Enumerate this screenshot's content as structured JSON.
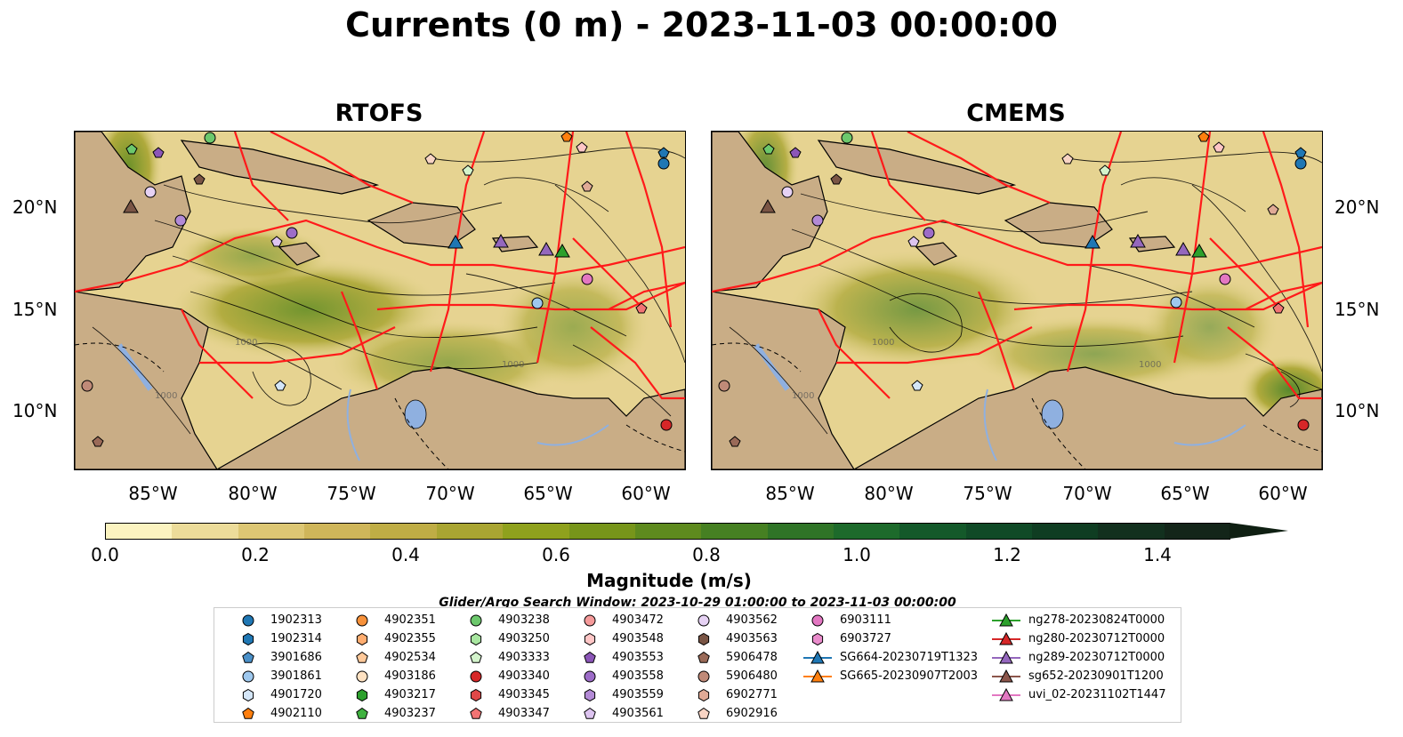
{
  "title": "Currents (0 m) - 2023-11-03 00:00:00",
  "panels": [
    {
      "title": "RTOFS"
    },
    {
      "title": "CMEMS"
    }
  ],
  "lat_labels": [
    "20°N",
    "15°N",
    "10°N"
  ],
  "lon_labels": [
    "85°W",
    "80°W",
    "75°W",
    "70°W",
    "65°W",
    "60°W"
  ],
  "colorbar": {
    "label": "Magnitude (m/s)",
    "ticks": [
      "0.0",
      "0.2",
      "0.4",
      "0.6",
      "0.8",
      "1.0",
      "1.2",
      "1.4"
    ],
    "colors": [
      "#fbf3c0",
      "#ecdc9a",
      "#ddc774",
      "#cfb65a",
      "#bfad45",
      "#a9a532",
      "#8fa11d",
      "#77951a",
      "#5e8a1e",
      "#468022",
      "#2f7427",
      "#1d6a2b",
      "#14592a",
      "#104a27",
      "#0f3d22",
      "#12301e",
      "#132519"
    ]
  },
  "legend": {
    "title": "Glider/Argo Search Window: 2023-10-29 01:00:00 to 2023-11-03 00:00:00",
    "items": [
      {
        "label": "1902313",
        "marker": "circle",
        "color": "#1f77b4"
      },
      {
        "label": "1902314",
        "marker": "hexagon",
        "color": "#1f77b4"
      },
      {
        "label": "3901686",
        "marker": "pentagon",
        "color": "#4a90c8"
      },
      {
        "label": "3901861",
        "marker": "circle",
        "color": "#9ec8ee"
      },
      {
        "label": "4901720",
        "marker": "hexagon",
        "color": "#d4e6f8"
      },
      {
        "label": "4902110",
        "marker": "pentagon",
        "color": "#ff7f0e"
      },
      {
        "label": "4902351",
        "marker": "circle",
        "color": "#f7913a"
      },
      {
        "label": "4902355",
        "marker": "hexagon",
        "color": "#ffad70"
      },
      {
        "label": "4902534",
        "marker": "pentagon",
        "color": "#ffc99a"
      },
      {
        "label": "4903186",
        "marker": "circle",
        "color": "#ffe2c2"
      },
      {
        "label": "4903217",
        "marker": "hexagon",
        "color": "#2ca02c"
      },
      {
        "label": "4903237",
        "marker": "pentagon",
        "color": "#3fb13f"
      },
      {
        "label": "4903238",
        "marker": "circle",
        "color": "#6cc86c"
      },
      {
        "label": "4903250",
        "marker": "hexagon",
        "color": "#a8e6a0"
      },
      {
        "label": "4903333",
        "marker": "pentagon",
        "color": "#d4f4cc"
      },
      {
        "label": "4903340",
        "marker": "circle",
        "color": "#d62728"
      },
      {
        "label": "4903345",
        "marker": "hexagon",
        "color": "#e04848"
      },
      {
        "label": "4903347",
        "marker": "pentagon",
        "color": "#f27474"
      },
      {
        "label": "4903472",
        "marker": "circle",
        "color": "#f59a9a"
      },
      {
        "label": "4903548",
        "marker": "hexagon",
        "color": "#ffc6c6"
      },
      {
        "label": "4903553",
        "marker": "pentagon",
        "color": "#8c56b8"
      },
      {
        "label": "4903558",
        "marker": "circle",
        "color": "#9d6cc8"
      },
      {
        "label": "4903559",
        "marker": "hexagon",
        "color": "#b38ad6"
      },
      {
        "label": "4903561",
        "marker": "pentagon",
        "color": "#ddc4f0"
      },
      {
        "label": "4903562",
        "marker": "circle",
        "color": "#e6d2f4"
      },
      {
        "label": "4903563",
        "marker": "hexagon",
        "color": "#7a5545"
      },
      {
        "label": "5906478",
        "marker": "pentagon",
        "color": "#9a6a58"
      },
      {
        "label": "5906480",
        "marker": "circle",
        "color": "#c08a78"
      },
      {
        "label": "6902771",
        "marker": "hexagon",
        "color": "#e0aa96"
      },
      {
        "label": "6902916",
        "marker": "pentagon",
        "color": "#f8d4c4"
      },
      {
        "label": "6903111",
        "marker": "circle",
        "color": "#e377c2"
      },
      {
        "label": "6903727",
        "marker": "hexagon",
        "color": "#ea8ccc"
      },
      {
        "label": "SG664-20230719T1323",
        "marker": "triangle",
        "color": "#1f77b4"
      },
      {
        "label": "SG665-20230907T2003",
        "marker": "triangle",
        "color": "#ff7f0e"
      },
      {
        "label": "ng278-20230824T0000",
        "marker": "triangle",
        "color": "#2ca02c"
      },
      {
        "label": "ng280-20230712T0000",
        "marker": "triangle",
        "color": "#d62728"
      },
      {
        "label": "ng289-20230712T0000",
        "marker": "triangle",
        "color": "#9467bd"
      },
      {
        "label": "sg652-20230901T1200",
        "marker": "triangle",
        "color": "#8c564b"
      },
      {
        "label": "uvi_02-20231102T1447",
        "marker": "triangle",
        "color": "#e377c2"
      }
    ]
  }
}
